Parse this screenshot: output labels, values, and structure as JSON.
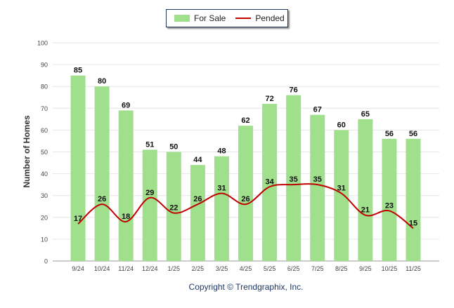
{
  "chart_data": {
    "type": "bar",
    "categories": [
      "9/24",
      "10/24",
      "11/24",
      "12/24",
      "1/25",
      "2/25",
      "3/25",
      "4/25",
      "5/25",
      "6/25",
      "7/25",
      "8/25",
      "9/25",
      "10/25",
      "11/25"
    ],
    "series": [
      {
        "name": "For Sale",
        "type": "bar",
        "color": "#a0e08c",
        "values": [
          85,
          80,
          69,
          51,
          50,
          44,
          48,
          62,
          72,
          76,
          67,
          60,
          65,
          56,
          56
        ]
      },
      {
        "name": "Pended",
        "type": "line",
        "color": "#c00000",
        "values": [
          17,
          26,
          18,
          29,
          22,
          26,
          31,
          26,
          34,
          35,
          35,
          31,
          21,
          23,
          15
        ]
      }
    ],
    "ylabel": "Number of Homes",
    "xlabel": "",
    "ylim": [
      0,
      100
    ],
    "yticks": [
      0,
      10,
      20,
      30,
      40,
      50,
      60,
      70,
      80,
      90,
      100
    ],
    "grid": true,
    "legend_position": "top-center"
  },
  "footer": {
    "copyright": "Copyright © Trendgraphix, Inc."
  }
}
